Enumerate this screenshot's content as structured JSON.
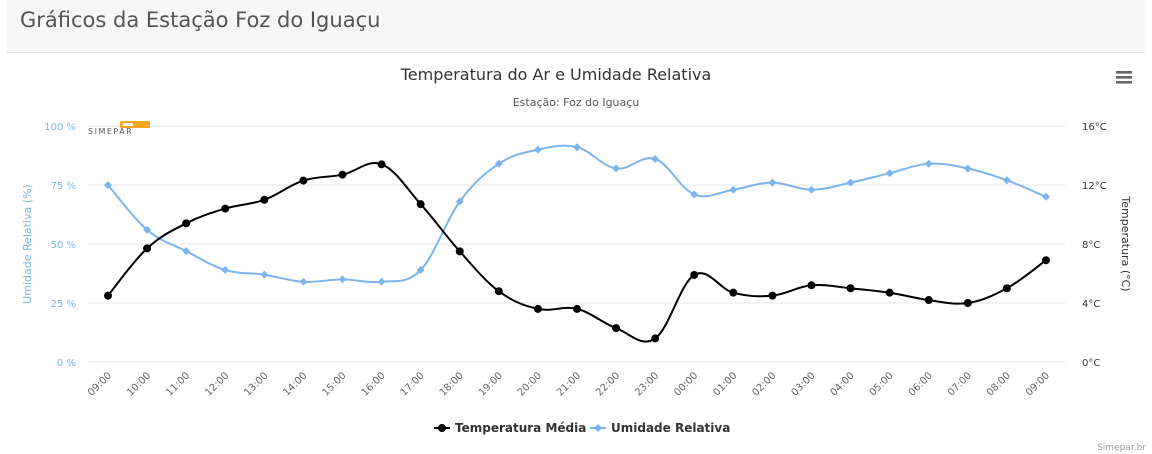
{
  "page": {
    "header_title": "Gráficos da Estação Foz do Iguaçu"
  },
  "chart": {
    "menu_icon": "hamburger-menu-icon",
    "logo_text": "SIMEPAR",
    "credits": "Simepar.br"
  },
  "chart_data": {
    "type": "line",
    "title": "Temperatura do Ar e Umidade Relativa",
    "subtitle": "Estação: Foz do Iguaçu",
    "categories": [
      "09:00",
      "10:00",
      "11:00",
      "12:00",
      "13:00",
      "14:00",
      "15:00",
      "16:00",
      "17:00",
      "18:00",
      "19:00",
      "20:00",
      "21:00",
      "22:00",
      "23:00",
      "00:00",
      "01:00",
      "02:00",
      "03:00",
      "04:00",
      "05:00",
      "06:00",
      "07:00",
      "08:00",
      "09:00"
    ],
    "y_left": {
      "label": "Umidade Relativa (%)",
      "min": 0,
      "max": 100,
      "ticks": [
        0,
        25,
        50,
        75,
        100
      ],
      "tick_labels": [
        "0 %",
        "25 %",
        "50 %",
        "75 %",
        "100 %"
      ]
    },
    "y_right": {
      "label": "Temperatura (°C)",
      "min": 0,
      "max": 16,
      "ticks": [
        0,
        4,
        8,
        12,
        16
      ],
      "tick_labels": [
        "0°C",
        "4°C",
        "8°C",
        "12°C",
        "16°C"
      ]
    },
    "grid": true,
    "legend_position": "bottom-center",
    "series": [
      {
        "name": "Temperatura Média",
        "axis": "right",
        "color": "#000000",
        "marker": "circle",
        "values": [
          4.5,
          7.7,
          9.4,
          10.4,
          11.0,
          12.3,
          12.7,
          13.4,
          10.7,
          7.5,
          4.8,
          3.6,
          3.6,
          2.3,
          1.6,
          5.9,
          4.7,
          4.5,
          5.2,
          5.0,
          4.7,
          4.2,
          4.0,
          5.0,
          6.9
        ]
      },
      {
        "name": "Umidade Relativa",
        "axis": "left",
        "color": "#7cb5ec",
        "marker": "diamond",
        "values": [
          75,
          56,
          47,
          39,
          37,
          34,
          35,
          34,
          39,
          68,
          84,
          90,
          91,
          82,
          86,
          71,
          73,
          76,
          73,
          76,
          80,
          84,
          82,
          77,
          70
        ]
      }
    ]
  }
}
